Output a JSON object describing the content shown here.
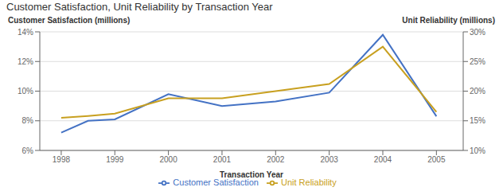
{
  "chart_data": {
    "type": "line",
    "title": "Customer Satisfaction, Unit Reliability by Transaction Year",
    "x_label": "Transaction Year",
    "y_label": "Customer Satisfaction (millions)",
    "y2_label": "Unit Reliability (millions)",
    "x": [
      1998,
      1998.5,
      1999,
      2000,
      2001,
      2002,
      2003,
      2004,
      2005
    ],
    "series": [
      {
        "name": "Customer Satisfaction",
        "color": "#4472C4",
        "values": [
          7.2,
          8.0,
          8.1,
          9.8,
          9.0,
          9.3,
          9.9,
          13.8,
          8.3
        ]
      },
      {
        "name": "Unit Reliability",
        "color": "#C8A020",
        "axis": "y2",
        "values": [
          15.5,
          15.8,
          16.2,
          18.8,
          18.8,
          20.0,
          21.2,
          27.5,
          16.5
        ]
      }
    ],
    "xlim": [
      1997.6,
      2005.5
    ],
    "xticks": [
      1998,
      1999,
      2000,
      2001,
      2002,
      2003,
      2004,
      2005
    ],
    "ylim": [
      6,
      14
    ],
    "yticks": [
      {
        "value": 6,
        "label": "6%"
      },
      {
        "value": 8,
        "label": "8%"
      },
      {
        "value": 10,
        "label": "10%"
      },
      {
        "value": 12,
        "label": "12%"
      },
      {
        "value": 14,
        "label": "14%"
      }
    ],
    "y2lim": [
      10,
      30
    ],
    "y2ticks": [
      {
        "value": 10,
        "label": "10%"
      },
      {
        "value": 15,
        "label": "15%"
      },
      {
        "value": 20,
        "label": "20%"
      },
      {
        "value": 25,
        "label": "25%"
      },
      {
        "value": 30,
        "label": "30%"
      }
    ],
    "grid": true,
    "legend": "bottom"
  }
}
